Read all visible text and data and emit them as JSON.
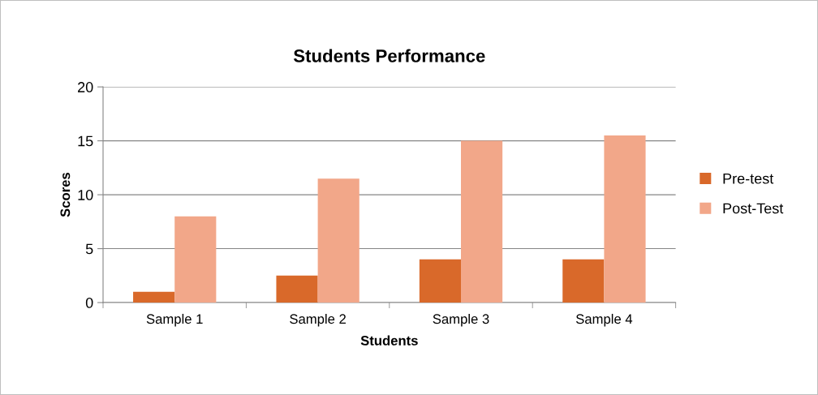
{
  "chart_data": {
    "type": "bar",
    "title": "Students Performance",
    "xlabel": "Students",
    "ylabel": "Scores",
    "categories": [
      "Sample 1",
      "Sample 2",
      "Sample 3",
      "Sample 4"
    ],
    "series": [
      {
        "name": "Pre-test",
        "color": "#d9692a",
        "values": [
          1,
          2.5,
          4,
          4
        ]
      },
      {
        "name": "Post-Test",
        "color": "#f2a789",
        "values": [
          8,
          11.5,
          15,
          15.5
        ]
      }
    ],
    "ylim": [
      0,
      20
    ],
    "yticks": [
      0,
      5,
      10,
      15,
      20
    ],
    "grid": "y",
    "legend": "right"
  }
}
